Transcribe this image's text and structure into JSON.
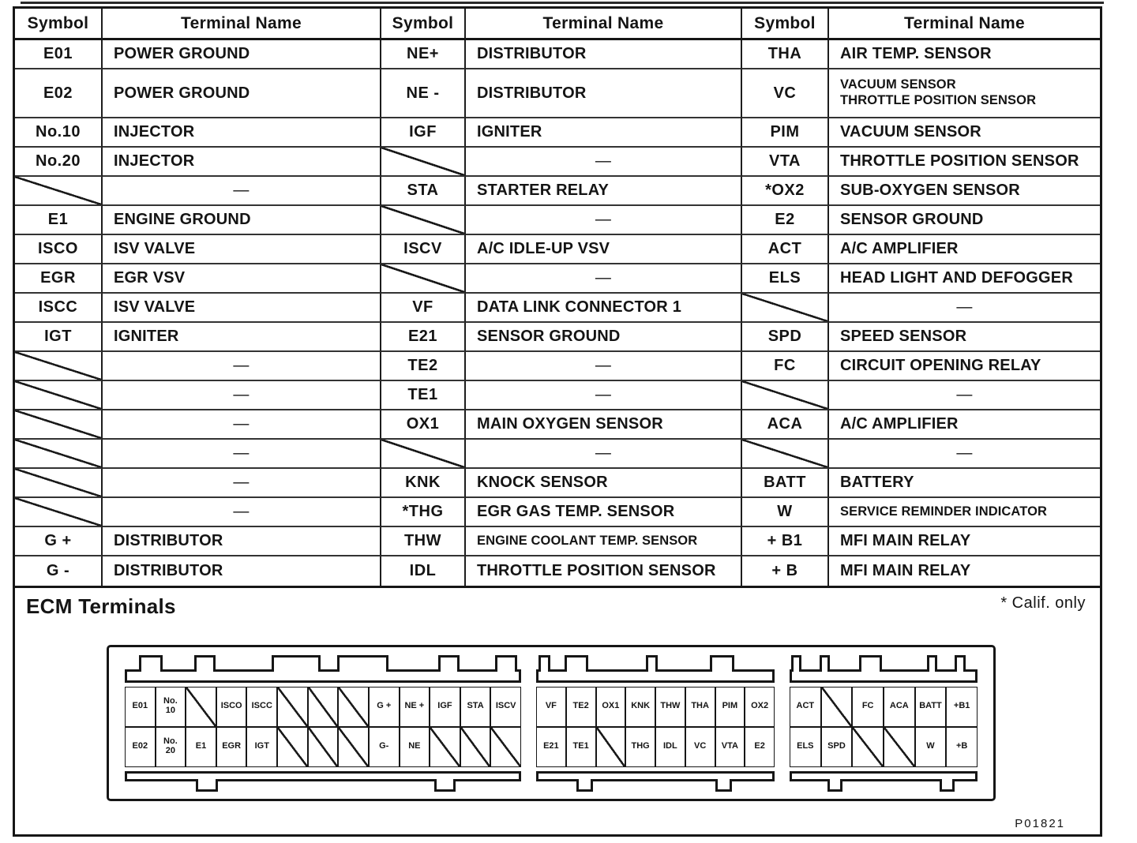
{
  "table": {
    "em_dash": "—",
    "header": {
      "symbol": "Symbol",
      "terminal_name": "Terminal Name"
    },
    "rows": [
      [
        {
          "sym": "E01",
          "name": "POWER GROUND"
        },
        {
          "sym": "NE+",
          "name": "DISTRIBUTOR"
        },
        {
          "sym": "THA",
          "name": "AIR TEMP. SENSOR"
        }
      ],
      [
        {
          "sym": "E02",
          "name": "POWER GROUND"
        },
        {
          "sym": "NE -",
          "name": "DISTRIBUTOR"
        },
        {
          "sym": "VC",
          "name": "VACUUM SENSOR\nTHROTTLE POSITION SENSOR"
        }
      ],
      [
        {
          "sym": "No.10",
          "name": "INJECTOR"
        },
        {
          "sym": "IGF",
          "name": "IGNITER"
        },
        {
          "sym": "PIM",
          "name": "VACUUM SENSOR"
        }
      ],
      [
        {
          "sym": "No.20",
          "name": "INJECTOR"
        },
        {
          "sym": null,
          "name": null
        },
        {
          "sym": "VTA",
          "name": "THROTTLE POSITION SENSOR"
        }
      ],
      [
        {
          "sym": null,
          "name": null
        },
        {
          "sym": "STA",
          "name": "STARTER RELAY"
        },
        {
          "sym": "*OX2",
          "name": "SUB-OXYGEN SENSOR"
        }
      ],
      [
        {
          "sym": "E1",
          "name": "ENGINE GROUND"
        },
        {
          "sym": null,
          "name": null
        },
        {
          "sym": "E2",
          "name": "SENSOR GROUND"
        }
      ],
      [
        {
          "sym": "ISCO",
          "name": "ISV VALVE"
        },
        {
          "sym": "ISCV",
          "name": "A/C IDLE-UP VSV"
        },
        {
          "sym": "ACT",
          "name": "A/C AMPLIFIER"
        }
      ],
      [
        {
          "sym": "EGR",
          "name": "EGR VSV"
        },
        {
          "sym": null,
          "name": null
        },
        {
          "sym": "ELS",
          "name": "HEAD LIGHT AND DEFOGGER"
        }
      ],
      [
        {
          "sym": "ISCC",
          "name": "ISV VALVE"
        },
        {
          "sym": "VF",
          "name": "DATA LINK CONNECTOR 1"
        },
        {
          "sym": null,
          "name": null
        }
      ],
      [
        {
          "sym": "IGT",
          "name": "IGNITER"
        },
        {
          "sym": "E21",
          "name": "SENSOR GROUND"
        },
        {
          "sym": "SPD",
          "name": "SPEED SENSOR"
        }
      ],
      [
        {
          "sym": null,
          "name": null
        },
        {
          "sym": "TE2",
          "name": null
        },
        {
          "sym": "FC",
          "name": "CIRCUIT OPENING RELAY"
        }
      ],
      [
        {
          "sym": null,
          "name": null
        },
        {
          "sym": "TE1",
          "name": null
        },
        {
          "sym": null,
          "name": null
        }
      ],
      [
        {
          "sym": null,
          "name": null
        },
        {
          "sym": "OX1",
          "name": "MAIN OXYGEN SENSOR"
        },
        {
          "sym": "ACA",
          "name": "A/C AMPLIFIER"
        }
      ],
      [
        {
          "sym": null,
          "name": null
        },
        {
          "sym": null,
          "name": null
        },
        {
          "sym": null,
          "name": null
        }
      ],
      [
        {
          "sym": null,
          "name": null
        },
        {
          "sym": "KNK",
          "name": "KNOCK SENSOR"
        },
        {
          "sym": "BATT",
          "name": "BATTERY"
        }
      ],
      [
        {
          "sym": null,
          "name": null
        },
        {
          "sym": "*THG",
          "name": "EGR GAS TEMP. SENSOR"
        },
        {
          "sym": "W",
          "name": "SERVICE REMINDER INDICATOR"
        }
      ],
      [
        {
          "sym": "G +",
          "name": "DISTRIBUTOR"
        },
        {
          "sym": "THW",
          "name": "ENGINE COOLANT TEMP. SENSOR"
        },
        {
          "sym": "+ B1",
          "name": "MFI MAIN RELAY"
        }
      ],
      [
        {
          "sym": "G -",
          "name": "DISTRIBUTOR"
        },
        {
          "sym": "IDL",
          "name": "THROTTLE POSITION SENSOR"
        },
        {
          "sym": "+ B",
          "name": "MFI MAIN RELAY"
        }
      ]
    ]
  },
  "bottom": {
    "heading": "ECM Terminals",
    "footnote": "* Calif. only",
    "part_number": "P01821"
  },
  "connector": {
    "blocks": [
      {
        "top": [
          "E01",
          "No.\n10",
          null,
          "ISCO",
          "ISCC",
          null,
          null,
          null,
          "G +",
          "NE +",
          "IGF",
          "STA",
          "ISCV"
        ],
        "bottom": [
          "E02",
          "No.\n20",
          "E1",
          "EGR",
          "IGT",
          null,
          null,
          null,
          "G-",
          "NE",
          null,
          null,
          null
        ]
      },
      {
        "top": [
          "VF",
          "TE2",
          "OX1",
          "KNK",
          "THW",
          "THA",
          "PIM",
          "OX2"
        ],
        "bottom": [
          "E21",
          "TE1",
          null,
          "THG",
          "IDL",
          "VC",
          "VTA",
          "E2"
        ]
      },
      {
        "top": [
          "ACT",
          null,
          "FC",
          "ACA",
          "BATT",
          "+B1"
        ],
        "bottom": [
          "ELS",
          "SPD",
          null,
          null,
          "W",
          "+B"
        ]
      }
    ]
  }
}
